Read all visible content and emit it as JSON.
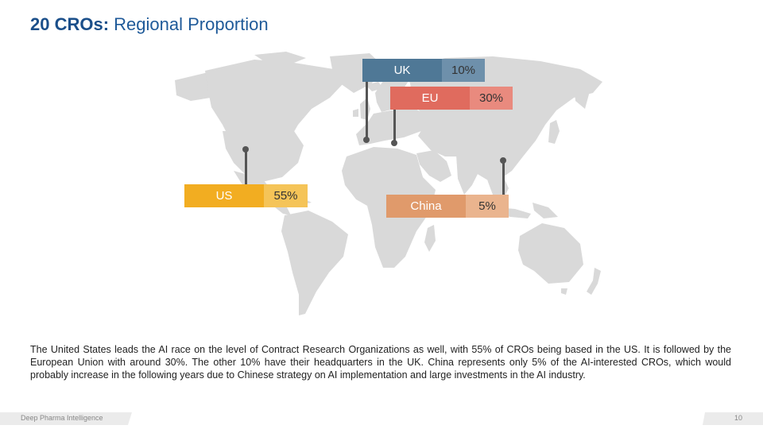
{
  "title": {
    "bold": "20 CROs:",
    "rest": " Regional Proportion"
  },
  "regions": {
    "uk": {
      "name": "UK",
      "pct": "10%",
      "name_color": "#4f7896",
      "pct_color": "#6e90ab"
    },
    "eu": {
      "name": "EU",
      "pct": "30%",
      "name_color": "#e06b5e",
      "pct_color": "#e98a7e"
    },
    "us": {
      "name": "US",
      "pct": "55%",
      "name_color": "#f2ad21",
      "pct_color": "#f5c458"
    },
    "china": {
      "name": "China",
      "pct": "5%",
      "name_color": "#e09a6b",
      "pct_color": "#eab48e"
    }
  },
  "description": "The United States leads the AI race on the level of Contract Research Organizations as well, with 55% of CROs being based in the US. It is followed by the European Union with around 30%. The other 10% have their headquarters in the UK. China represents only 5% of the AI-interested CROs, which would probably increase in the following years due to Chinese strategy on AI implementation and large investments in the AI industry.",
  "footer": {
    "company": "Deep Pharma Intelligence",
    "page": "10"
  }
}
